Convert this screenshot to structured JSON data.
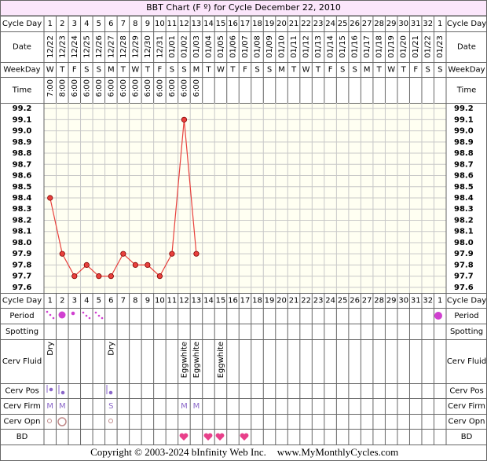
{
  "chart_data": {
    "type": "line",
    "title": "BBT Chart (F º) for Cycle December 22, 2010",
    "categories": [
      1,
      2,
      3,
      4,
      5,
      6,
      7,
      8,
      9,
      10,
      11,
      12,
      13,
      14,
      15,
      16,
      17,
      18,
      19,
      20,
      21,
      22,
      23,
      24,
      25,
      26,
      27,
      28,
      29,
      30,
      31,
      32,
      1
    ],
    "dates": [
      "12/22",
      "12/23",
      "12/24",
      "12/25",
      "12/26",
      "12/27",
      "12/28",
      "12/29",
      "12/30",
      "12/31",
      "01/01",
      "01/02",
      "01/03",
      "01/04",
      "01/05",
      "01/06",
      "01/07",
      "01/08",
      "01/09",
      "01/10",
      "01/11",
      "01/12",
      "01/13",
      "01/14",
      "01/15",
      "01/16",
      "01/17",
      "01/18",
      "01/19",
      "01/20",
      "01/21",
      "01/22",
      "01/23"
    ],
    "weekdays": [
      "W",
      "T",
      "F",
      "S",
      "S",
      "M",
      "T",
      "W",
      "T",
      "F",
      "S",
      "S",
      "M",
      "T",
      "W",
      "T",
      "F",
      "S",
      "S",
      "M",
      "T",
      "W",
      "T",
      "F",
      "S",
      "S",
      "M",
      "T",
      "W",
      "T",
      "F",
      "S",
      "S"
    ],
    "times": [
      "7:00",
      "8:00",
      "6:00",
      "6:00",
      "6:00",
      "6:00",
      "6:00",
      "6:00",
      "6:00",
      "6:00",
      "6:00",
      "6:00",
      "6:00",
      null,
      null,
      null,
      null,
      null,
      null,
      null,
      null,
      null,
      null,
      null,
      null,
      null,
      null,
      null,
      null,
      null,
      null,
      null,
      null
    ],
    "values": [
      98.4,
      97.9,
      97.7,
      97.8,
      97.7,
      97.7,
      97.9,
      97.8,
      97.8,
      97.7,
      97.9,
      99.1,
      97.9,
      null,
      null,
      null,
      null,
      null,
      null,
      null,
      null,
      null,
      null,
      null,
      null,
      null,
      null,
      null,
      null,
      null,
      null,
      null,
      null
    ],
    "color": "#e8403c",
    "ylim": [
      97.55,
      99.25
    ],
    "yticks": [
      99.2,
      99.1,
      {
        "value": 99,
        "label": "99.0"
      },
      98.9,
      98.8,
      98.7,
      98.6,
      98.5,
      98.4,
      98.3,
      98.2,
      98.1,
      {
        "value": 98,
        "label": "98.0"
      },
      97.9,
      97.8,
      97.7,
      97.6
    ],
    "grid": true,
    "cerv_fluid": [
      "Dry",
      null,
      null,
      null,
      null,
      "Dry",
      null,
      null,
      null,
      null,
      null,
      "Eggwhite",
      "Eggwhite",
      null,
      "Eggwhite",
      null,
      null,
      null,
      null,
      null,
      null,
      null,
      null,
      null,
      null,
      null,
      null,
      null,
      null,
      null,
      null,
      null,
      null
    ],
    "cerv_firm": [
      "M",
      "M",
      null,
      null,
      null,
      "S",
      null,
      null,
      null,
      null,
      null,
      "M",
      "M",
      null,
      null,
      null,
      null,
      null,
      null,
      null,
      null,
      null,
      null,
      null,
      null,
      null,
      null,
      null,
      null,
      null,
      null,
      null,
      null
    ],
    "row_labels": {
      "cycle_day": "Cycle Day",
      "date": "Date",
      "weekday": "WeekDay",
      "time": "Time",
      "period": "Period",
      "spotting": "Spotting",
      "cerv_fluid": "Cerv Fluid",
      "cerv_pos": "Cerv Pos",
      "cerv_firm": "Cerv Firm",
      "cerv_opn": "Cerv Opn",
      "bd": "BD"
    }
  },
  "footer": {
    "copyright": "Copyright © 2003-2024 bInfinity Web Inc.",
    "site": "www.MyMonthlyCycles.com"
  }
}
